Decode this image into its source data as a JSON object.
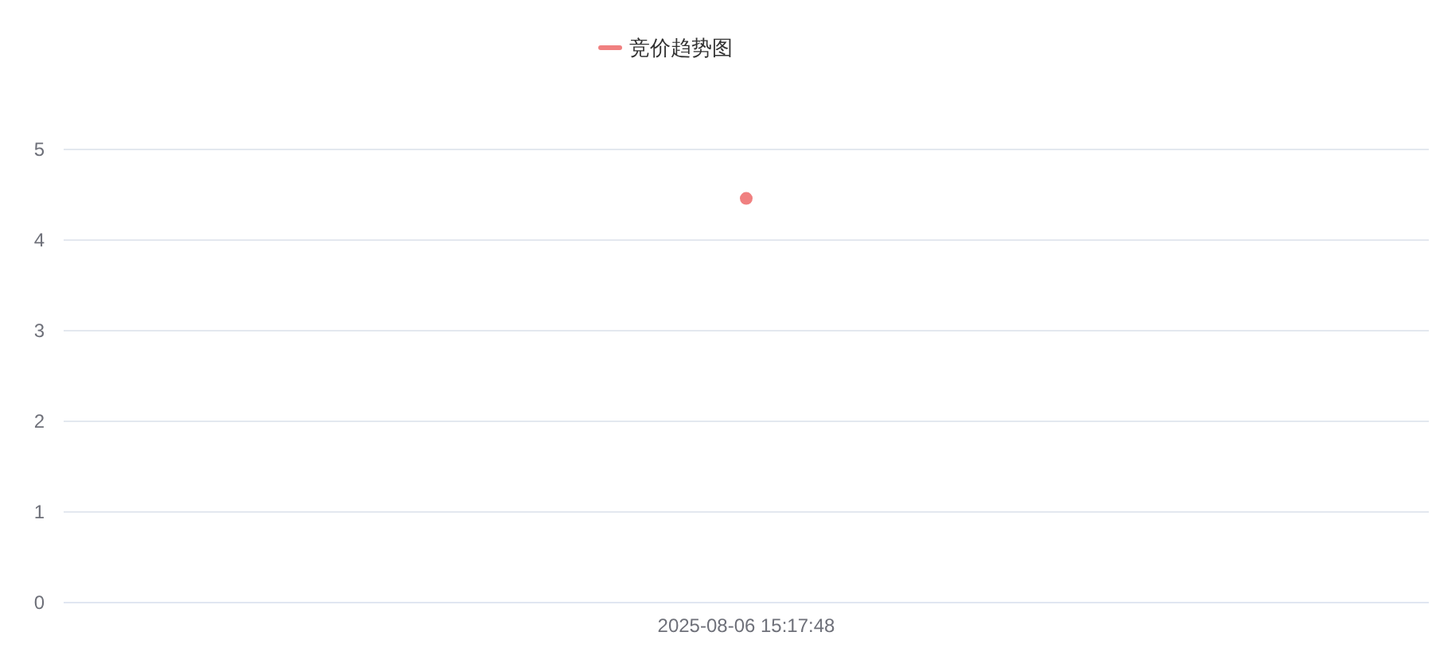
{
  "chart_data": {
    "type": "line",
    "categories": [
      "2025-08-06 15:17:48"
    ],
    "series": [
      {
        "name": "竞价趋势图",
        "color": "#f08080",
        "values": [
          4.46
        ]
      }
    ],
    "ylim": [
      0,
      5
    ],
    "yticks": [
      0,
      1,
      2,
      3,
      4,
      5
    ],
    "grid": "y",
    "legend": "top",
    "marker": "circle"
  }
}
